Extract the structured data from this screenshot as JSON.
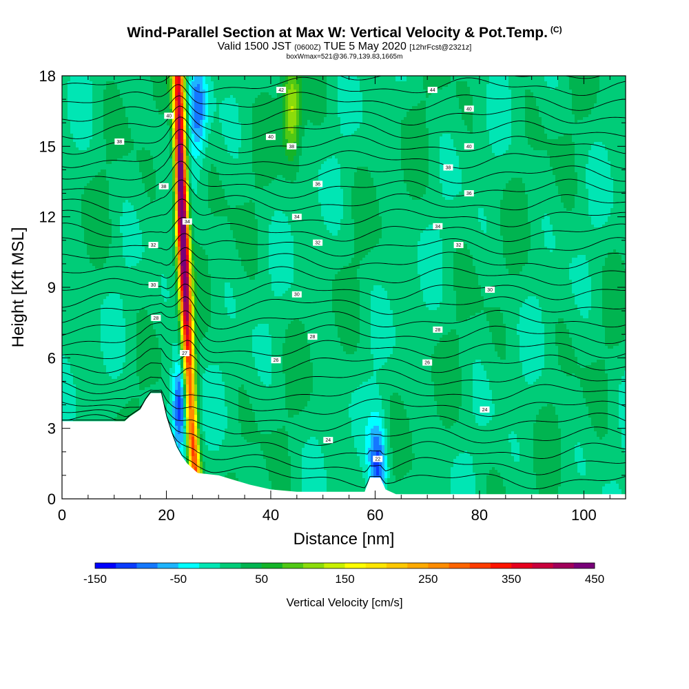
{
  "chart_data": {
    "type": "heatmap",
    "title": "Wind-Parallel Section at Max W: Vertical Velocity & Pot.Temp.",
    "title_mark": "(C)",
    "subtitle_main": "Valid 1500 JST",
    "subtitle_z": "(0600Z)",
    "subtitle_date": "TUE 5 May 2020",
    "subtitle_fcst": "[12hrFcst@2321z]",
    "subtitle2": "boxWmax=521@36.79,139.83,1665m",
    "xlabel": "Distance [nm]",
    "ylabel": "Height [Kft MSL]",
    "xlim": [
      0,
      108
    ],
    "ylim": [
      0,
      18
    ],
    "xticks": [
      "0",
      "20",
      "40",
      "60",
      "80",
      "100"
    ],
    "yticks": [
      "0",
      "3",
      "6",
      "9",
      "12",
      "15",
      "18"
    ],
    "colorbar": {
      "title": "Vertical Velocity [cm/s]",
      "tick_labels": [
        "-150",
        "-50",
        "50",
        "150",
        "250",
        "350",
        "450"
      ],
      "levels": [
        -150,
        -125,
        -100,
        -75,
        -50,
        -25,
        0,
        25,
        50,
        75,
        100,
        125,
        150,
        175,
        200,
        225,
        250,
        275,
        300,
        325,
        350,
        375,
        400,
        425,
        450
      ],
      "colors": [
        "#0000ff",
        "#0a3cff",
        "#1478ff",
        "#1eb4ff",
        "#00ffff",
        "#00e6b4",
        "#00cc78",
        "#00b450",
        "#14b428",
        "#50c814",
        "#8cdc0a",
        "#c8f000",
        "#ffff00",
        "#ffe600",
        "#ffc800",
        "#ffaa00",
        "#ff8c00",
        "#ff6400",
        "#ff3c00",
        "#ff1400",
        "#e6001e",
        "#c8003c",
        "#a0005a",
        "#780078"
      ]
    },
    "terrain_kft": [
      [
        0,
        3.3
      ],
      [
        10,
        3.3
      ],
      [
        12,
        3.3
      ],
      [
        13,
        3.5
      ],
      [
        15,
        3.8
      ],
      [
        16,
        4.2
      ],
      [
        17,
        4.5
      ],
      [
        19,
        4.5
      ],
      [
        20,
        3.5
      ],
      [
        21,
        2.8
      ],
      [
        22,
        2.2
      ],
      [
        23,
        1.8
      ],
      [
        24,
        1.5
      ],
      [
        25,
        1.3
      ],
      [
        26,
        1.1
      ],
      [
        30,
        1.0
      ],
      [
        33,
        0.8
      ],
      [
        36,
        0.6
      ],
      [
        40,
        0.4
      ],
      [
        45,
        0.3
      ],
      [
        58,
        0.3
      ],
      [
        59,
        0.9
      ],
      [
        61,
        0.9
      ],
      [
        62,
        0.4
      ],
      [
        64,
        0.2
      ],
      [
        108,
        0.2
      ]
    ],
    "updraft_axis": [
      [
        22.3,
        18
      ],
      [
        22.6,
        15
      ],
      [
        23.0,
        12
      ],
      [
        23.6,
        9
      ],
      [
        24.2,
        6
      ],
      [
        24.8,
        3
      ],
      [
        25.5,
        1.2
      ]
    ],
    "downdrafts": [
      {
        "x": 26.0,
        "y": 16.5,
        "w": -100
      },
      {
        "x": 22.8,
        "y": 4.0,
        "w": -150
      },
      {
        "x": 60.5,
        "y": 1.4,
        "w": -120
      },
      {
        "x": 44.0,
        "y": 16.5,
        "w": 120
      }
    ],
    "isentrope_labels": [
      {
        "x": 42,
        "y": 17.4,
        "t": "42"
      },
      {
        "x": 71,
        "y": 17.4,
        "t": "44"
      },
      {
        "x": 20.5,
        "y": 16.3,
        "t": "40"
      },
      {
        "x": 78,
        "y": 16.6,
        "t": "40"
      },
      {
        "x": 11,
        "y": 15.2,
        "t": "38"
      },
      {
        "x": 40,
        "y": 15.4,
        "t": "40"
      },
      {
        "x": 44,
        "y": 15.0,
        "t": "38"
      },
      {
        "x": 78,
        "y": 15.0,
        "t": "40"
      },
      {
        "x": 74,
        "y": 14.1,
        "t": "38"
      },
      {
        "x": 19.5,
        "y": 13.3,
        "t": "38"
      },
      {
        "x": 49,
        "y": 13.4,
        "t": "36"
      },
      {
        "x": 78,
        "y": 13.0,
        "t": "36"
      },
      {
        "x": 24,
        "y": 11.8,
        "t": "34"
      },
      {
        "x": 45,
        "y": 12.0,
        "t": "34"
      },
      {
        "x": 72,
        "y": 11.6,
        "t": "34"
      },
      {
        "x": 17.5,
        "y": 10.8,
        "t": "32"
      },
      {
        "x": 49,
        "y": 10.9,
        "t": "32"
      },
      {
        "x": 76,
        "y": 10.8,
        "t": "32"
      },
      {
        "x": 17.5,
        "y": 9.1,
        "t": "30"
      },
      {
        "x": 45,
        "y": 8.7,
        "t": "30"
      },
      {
        "x": 82,
        "y": 8.9,
        "t": "30"
      },
      {
        "x": 18,
        "y": 7.7,
        "t": "28"
      },
      {
        "x": 48,
        "y": 6.9,
        "t": "28"
      },
      {
        "x": 72,
        "y": 7.2,
        "t": "28"
      },
      {
        "x": 23.5,
        "y": 6.2,
        "t": "27"
      },
      {
        "x": 41,
        "y": 5.9,
        "t": "26"
      },
      {
        "x": 70,
        "y": 5.8,
        "t": "26"
      },
      {
        "x": 81,
        "y": 3.8,
        "t": "24"
      },
      {
        "x": 51,
        "y": 2.5,
        "t": "24"
      },
      {
        "x": 60.5,
        "y": 1.7,
        "t": "22"
      }
    ]
  }
}
